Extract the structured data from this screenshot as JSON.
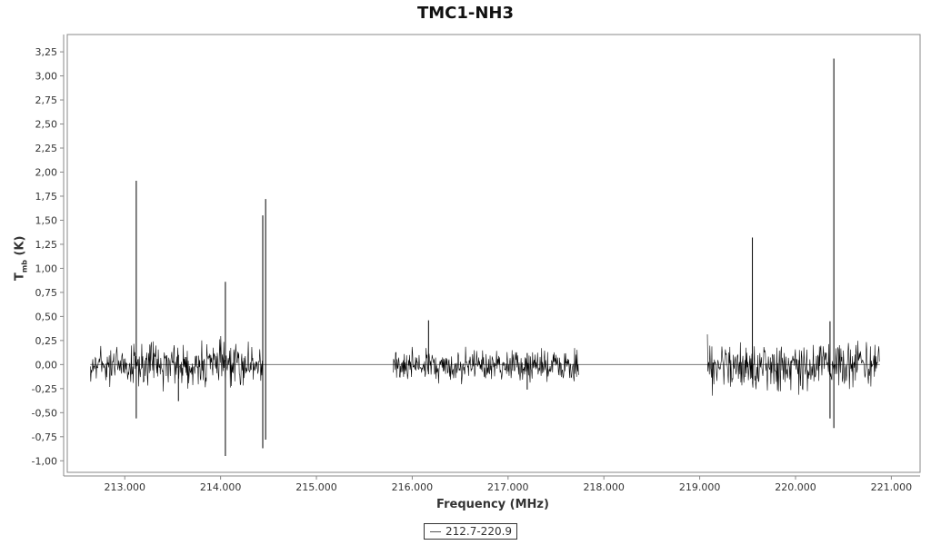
{
  "chart_data": {
    "type": "line",
    "title": "TMC1-NH3",
    "xlabel": "Frequency (MHz)",
    "ylabel_main": "T",
    "ylabel_sub": "mb",
    "ylabel_unit": " (K)",
    "xlim": [
      212.4,
      221.3
    ],
    "ylim": [
      -1.12,
      3.43
    ],
    "x_ticks": [
      213.0,
      214.0,
      215.0,
      216.0,
      217.0,
      218.0,
      219.0,
      220.0,
      221.0
    ],
    "x_tick_labels": [
      "213.000",
      "214.000",
      "215.000",
      "216.000",
      "217.000",
      "218.000",
      "219.000",
      "220.000",
      "221.000"
    ],
    "y_ticks": [
      -1.0,
      -0.75,
      -0.5,
      -0.25,
      0.0,
      0.25,
      0.5,
      0.75,
      1.0,
      1.25,
      1.5,
      1.75,
      2.0,
      2.25,
      2.5,
      2.75,
      3.0,
      3.25
    ],
    "y_tick_labels": [
      "-1,00",
      "-0,75",
      "-0,50",
      "-0,25",
      "0,00",
      "0,25",
      "0,50",
      "0,75",
      "1,00",
      "1,25",
      "1,50",
      "1,75",
      "2,00",
      "2,25",
      "2,50",
      "2,75",
      "3,00",
      "3,25"
    ],
    "grid": false,
    "legend_position": "bottom-center",
    "series": [
      {
        "name": "212.7-220.9",
        "color": "#000000",
        "baseline": [
          [
            212.64,
            0.0
          ],
          [
            220.88,
            0.0
          ]
        ],
        "noise_bands": [
          {
            "x_start": 212.64,
            "x_end": 214.44,
            "y_low": -0.25,
            "y_high": 0.25
          },
          {
            "x_start": 215.8,
            "x_end": 217.74,
            "y_low": -0.2,
            "y_high": 0.17
          },
          {
            "x_start": 219.08,
            "x_end": 220.88,
            "y_low": -0.3,
            "y_high": 0.3
          }
        ],
        "spikes": [
          {
            "x": 213.12,
            "y_max": 1.91,
            "y_min": -0.56
          },
          {
            "x": 213.56,
            "y_max": 0.1,
            "y_min": -0.38
          },
          {
            "x": 214.05,
            "y_max": 0.86,
            "y_min": -0.95
          },
          {
            "x": 214.44,
            "y_max": 1.55,
            "y_min": -0.87
          },
          {
            "x": 214.47,
            "y_max": 1.72,
            "y_min": -0.78
          },
          {
            "x": 216.17,
            "y_max": 0.46,
            "y_min": -0.1
          },
          {
            "x": 217.2,
            "y_max": 0.12,
            "y_min": -0.26
          },
          {
            "x": 219.55,
            "y_max": 1.32,
            "y_min": -0.15
          },
          {
            "x": 220.36,
            "y_max": 0.45,
            "y_min": -0.56
          },
          {
            "x": 220.4,
            "y_max": 3.18,
            "y_min": -0.66
          }
        ]
      }
    ]
  }
}
